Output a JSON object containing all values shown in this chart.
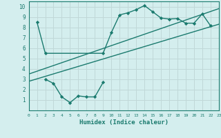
{
  "bg_color": "#d4eeee",
  "grid_color": "#c0d8d8",
  "line_color": "#1a7a6e",
  "xlabel": "Humidex (Indice chaleur)",
  "xlim": [
    0,
    23
  ],
  "ylim": [
    0,
    10.5
  ],
  "xticks": [
    0,
    1,
    2,
    3,
    4,
    5,
    6,
    7,
    8,
    9,
    10,
    11,
    12,
    13,
    14,
    15,
    16,
    17,
    18,
    19,
    20,
    21,
    22,
    23
  ],
  "yticks": [
    1,
    2,
    3,
    4,
    5,
    6,
    7,
    8,
    9,
    10
  ],
  "series1_x": [
    1,
    2,
    9,
    10,
    11,
    12,
    13,
    14,
    15,
    16,
    17,
    18,
    19,
    20,
    21,
    22
  ],
  "series1_y": [
    8.5,
    5.5,
    5.5,
    7.5,
    9.2,
    9.4,
    9.7,
    10.1,
    9.5,
    8.9,
    8.8,
    8.85,
    8.4,
    8.4,
    9.3,
    8.15
  ],
  "series2_x": [
    2,
    3,
    4,
    5,
    6,
    7,
    8,
    9
  ],
  "series2_y": [
    3.0,
    2.6,
    1.3,
    0.75,
    1.4,
    1.3,
    1.3,
    2.7
  ],
  "line1_x": [
    0,
    23
  ],
  "line1_y": [
    2.8,
    8.3
  ],
  "line2_x": [
    0,
    23
  ],
  "line2_y": [
    3.5,
    9.8
  ],
  "marker": "D",
  "markersize": 2.2,
  "linewidth": 1.0
}
